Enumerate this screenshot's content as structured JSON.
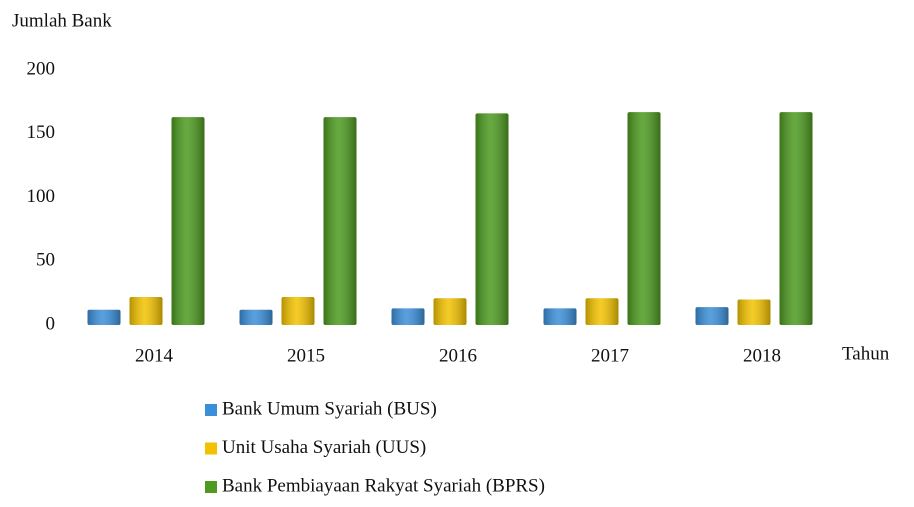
{
  "chart_data": {
    "type": "bar",
    "y_label": "Jumlah Bank",
    "x_label": "Tahun",
    "categories": [
      "2014",
      "2015",
      "2016",
      "2017",
      "2018"
    ],
    "series": [
      {
        "name": "Bank Umum Syariah (BUS)",
        "color": "#3b8fd9",
        "values": [
          12,
          12,
          13,
          13,
          14
        ]
      },
      {
        "name": "Unit Usaha Syariah (UUS)",
        "color": "#f2c200",
        "values": [
          22,
          22,
          21,
          21,
          20
        ]
      },
      {
        "name": "Bank Pembiayaan Rakyat Syariah (BPRS)",
        "color": "#4c9a1f",
        "values": [
          163,
          163,
          166,
          167,
          167
        ]
      }
    ],
    "ylim": [
      0,
      200
    ],
    "yticks": [
      0,
      50,
      100,
      150,
      200
    ],
    "grid": false
  }
}
